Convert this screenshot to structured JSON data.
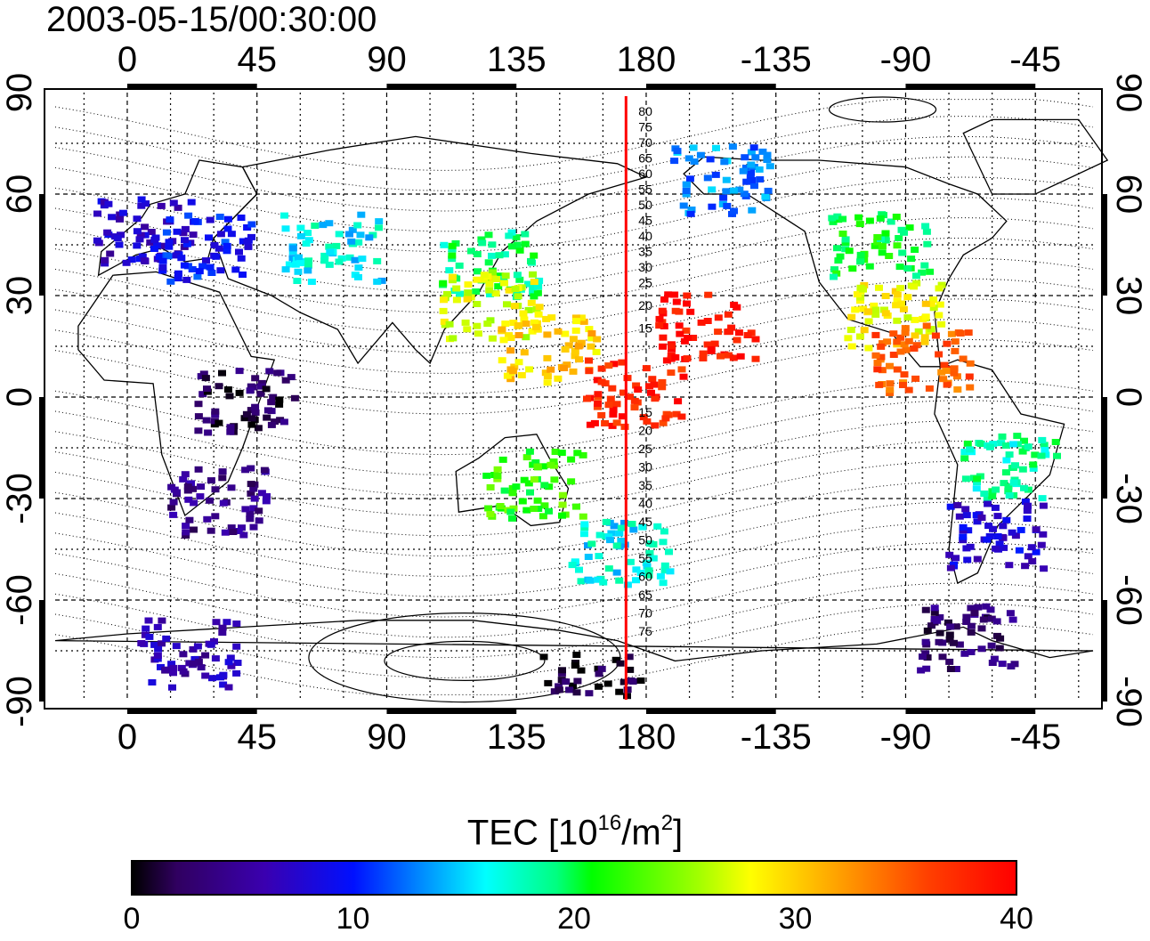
{
  "title": "2003-05-15/00:30:00",
  "map": {
    "top_lon_labels": [
      "0",
      "45",
      "90",
      "135",
      "180",
      "-135",
      "-90",
      "-45"
    ],
    "bottom_lon_labels": [
      "0",
      "45",
      "90",
      "135",
      "180",
      "-135",
      "-90",
      "-45"
    ],
    "left_lat_labels": [
      "90",
      "60",
      "30",
      "0",
      "-30",
      "-60",
      "-90"
    ],
    "right_lat_labels": [
      "90",
      "60",
      "30",
      "0",
      "-30",
      "-60",
      "-90"
    ],
    "contour_labels_north": [
      "80",
      "75",
      "70",
      "65",
      "60",
      "55",
      "50",
      "45",
      "40",
      "35",
      "30",
      "25",
      "20",
      "15"
    ],
    "contour_labels_south": [
      "15",
      "20",
      "25",
      "30",
      "35",
      "40",
      "45",
      "50",
      "55",
      "60",
      "65",
      "70",
      "75"
    ],
    "meridian_marker": {
      "color": "#ff0000",
      "longitude": 173
    }
  },
  "colorbar": {
    "title_prefix": "TEC  [10",
    "title_exp1": "16",
    "title_mid": "/m",
    "title_exp2": "2",
    "title_suffix": "]",
    "ticks": [
      "0",
      "10",
      "20",
      "30",
      "40"
    ],
    "range": [
      0,
      40
    ]
  },
  "chart_data": {
    "type": "heatmap",
    "title": "2003-05-15/00:30:00",
    "lon_range": [
      -25,
      335
    ],
    "lat_range": [
      -90,
      90
    ],
    "value_range": [
      0,
      40
    ],
    "regions": [
      {
        "lon": 5,
        "lat": 50,
        "value": 7
      },
      {
        "lon": 25,
        "lat": 45,
        "value": 10
      },
      {
        "lon": 70,
        "lat": 45,
        "value": 16
      },
      {
        "lon": 125,
        "lat": 40,
        "value": 19
      },
      {
        "lon": 125,
        "lat": 28,
        "value": 27
      },
      {
        "lon": 145,
        "lat": 15,
        "value": 30
      },
      {
        "lon": 175,
        "lat": 2,
        "value": 38
      },
      {
        "lon": 140,
        "lat": -25,
        "value": 22
      },
      {
        "lon": 170,
        "lat": -45,
        "value": 16
      },
      {
        "lon": 200,
        "lat": 22,
        "value": 39
      },
      {
        "lon": 205,
        "lat": 65,
        "value": 13
      },
      {
        "lon": 260,
        "lat": 45,
        "value": 20
      },
      {
        "lon": 265,
        "lat": 25,
        "value": 28
      },
      {
        "lon": 275,
        "lat": 12,
        "value": 35
      },
      {
        "lon": 305,
        "lat": -20,
        "value": 18
      },
      {
        "lon": 300,
        "lat": -40,
        "value": 8
      },
      {
        "lon": 290,
        "lat": -70,
        "value": 3
      },
      {
        "lon": 30,
        "lat": -30,
        "value": 4
      },
      {
        "lon": 40,
        "lat": 0,
        "value": 2
      },
      {
        "lon": 20,
        "lat": -75,
        "value": 6
      },
      {
        "lon": 160,
        "lat": -85,
        "value": 1
      }
    ]
  }
}
